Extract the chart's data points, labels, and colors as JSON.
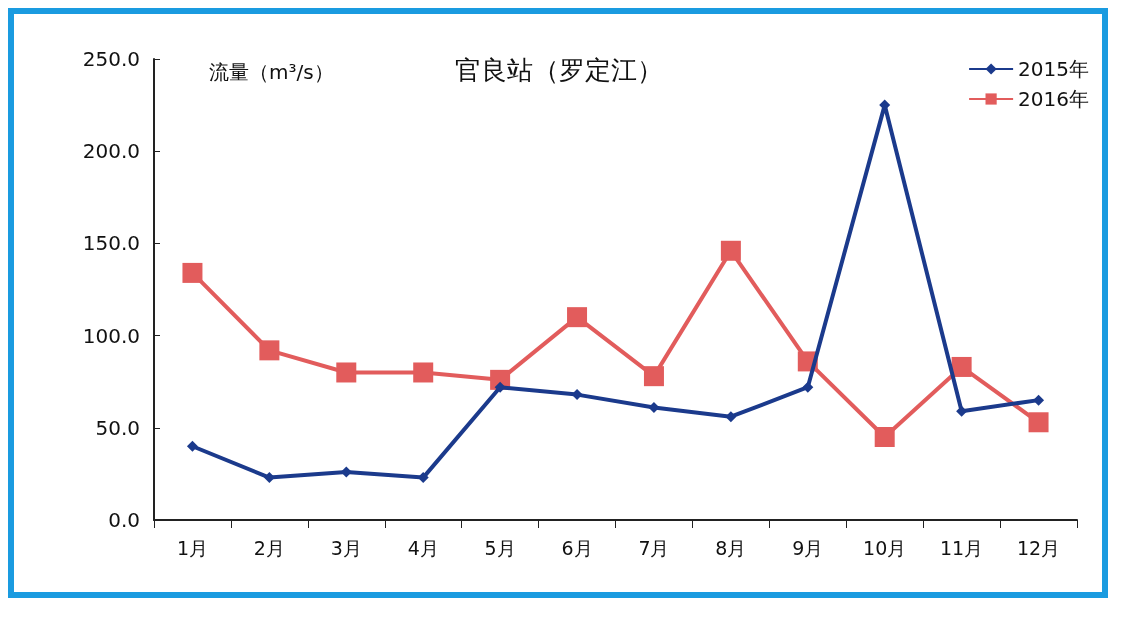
{
  "chart_data": {
    "type": "line",
    "title": "官良站（罗定江）",
    "ylabel": "流量（m³/s）",
    "categories": [
      "1月",
      "2月",
      "3月",
      "4月",
      "5月",
      "6月",
      "7月",
      "8月",
      "9月",
      "10月",
      "11月",
      "12月"
    ],
    "series": [
      {
        "name": "2015年",
        "color": "#1b3a8c",
        "marker": "diamond",
        "values": [
          40,
          23,
          26,
          23,
          72,
          68,
          61,
          56,
          72,
          225,
          59,
          65
        ]
      },
      {
        "name": "2016年",
        "color": "#e25c5c",
        "marker": "square",
        "values": [
          134,
          92,
          80,
          80,
          76,
          110,
          78,
          146,
          86,
          45,
          83,
          53
        ]
      }
    ],
    "ylim": [
      0,
      250
    ],
    "yticks": [
      {
        "value": 0,
        "label": "0.0"
      },
      {
        "value": 50,
        "label": "50.0"
      },
      {
        "value": 100,
        "label": "100.0"
      },
      {
        "value": 150,
        "label": "150.0"
      },
      {
        "value": 200,
        "label": "200.0"
      },
      {
        "value": 250,
        "label": "250.0"
      }
    ],
    "grid": false,
    "legend": "top right",
    "line_style": "solid"
  }
}
